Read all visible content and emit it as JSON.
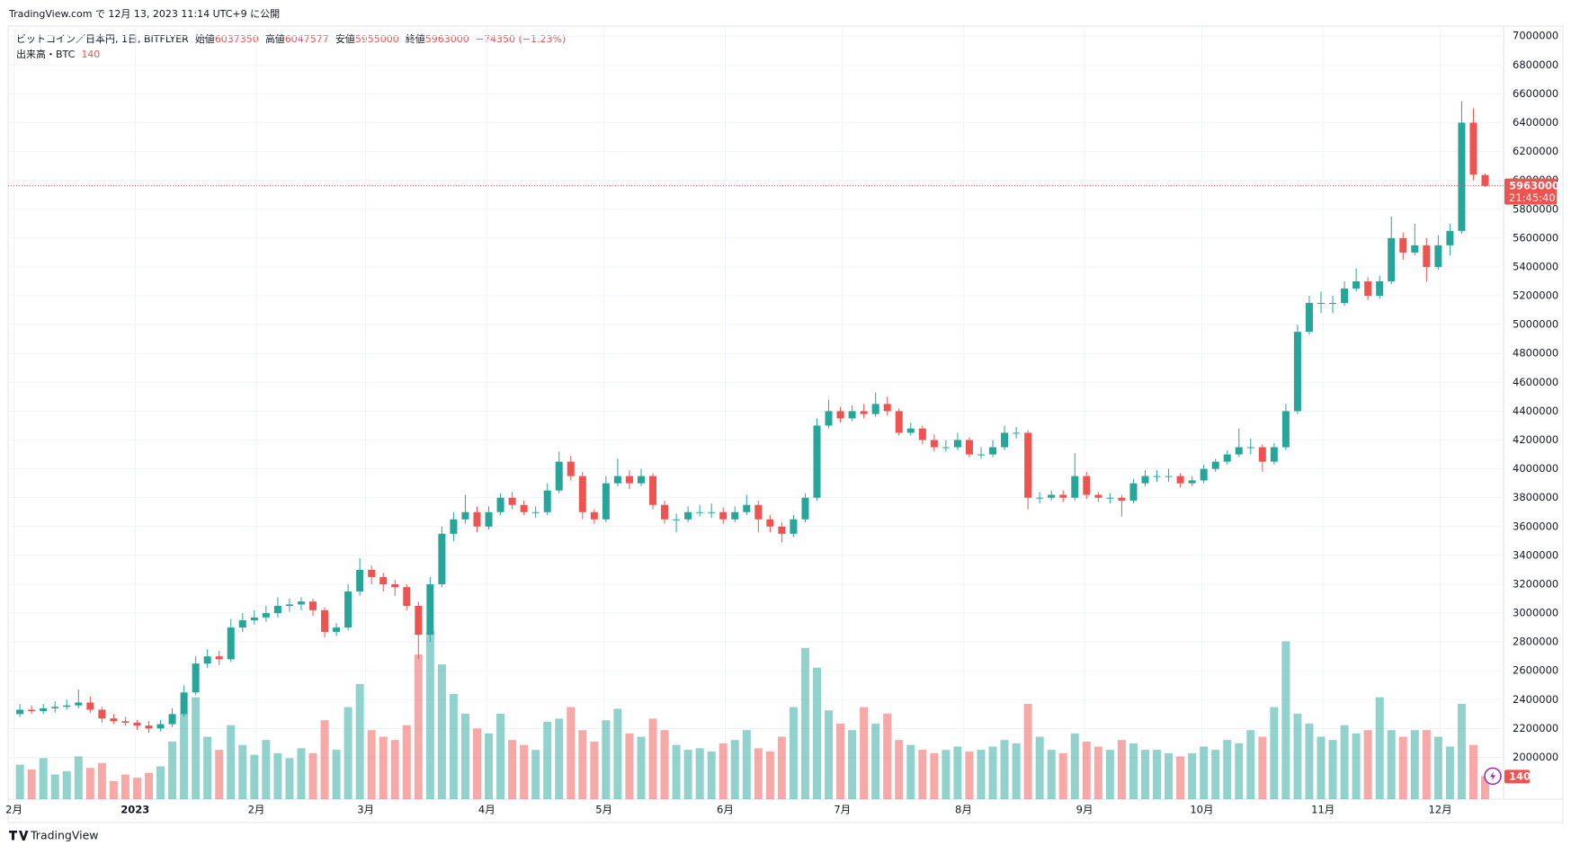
{
  "header": {
    "published": "TradingView.com で 12月 13, 2023 11:14 UTC+9 に公開"
  },
  "footer": {
    "brand": "TradingView"
  },
  "chart_data": {
    "type": "candlestick",
    "symbol": "ビットコイン／日本円, 1日, BITFLYER",
    "open_label": "始値",
    "high_label": "高値",
    "low_label": "安値",
    "close_label": "終値",
    "change_label": "−74350 (−1.23%)",
    "volume_title": "出来高・BTC",
    "countdown": "21:45:40",
    "up_color": "#26a69a",
    "down_color": "#ef5350",
    "ylim": [
      1710000,
      7070000
    ],
    "yticks": [
      2000000,
      2200000,
      2400000,
      2600000,
      2800000,
      3000000,
      3200000,
      3400000,
      3600000,
      3800000,
      4000000,
      4200000,
      4400000,
      4600000,
      4800000,
      5000000,
      5200000,
      5400000,
      5600000,
      5800000,
      6000000,
      6200000,
      6400000,
      6600000,
      6800000,
      7000000
    ],
    "xticks": [
      {
        "value": 0,
        "label": "2月"
      },
      {
        "value": 10.33,
        "label": "2023"
      },
      {
        "value": 20.67,
        "label": "2月"
      },
      {
        "value": 30,
        "label": "3月"
      },
      {
        "value": 40.33,
        "label": "4月"
      },
      {
        "value": 50.33,
        "label": "5月"
      },
      {
        "value": 60.67,
        "label": "6月"
      },
      {
        "value": 70.67,
        "label": "7月"
      },
      {
        "value": 81,
        "label": "8月"
      },
      {
        "value": 91.33,
        "label": "9月"
      },
      {
        "value": 101.33,
        "label": "10月"
      },
      {
        "value": 111.67,
        "label": "11月"
      },
      {
        "value": 121.67,
        "label": "12月"
      }
    ],
    "grid": true,
    "volume_lim": [
      0,
      1400
    ],
    "candles": [
      [
        2300000,
        2370000,
        2280000,
        2330000
      ],
      [
        2330000,
        2360000,
        2300000,
        2320000
      ],
      [
        2320000,
        2370000,
        2300000,
        2340000
      ],
      [
        2340000,
        2390000,
        2310000,
        2350000
      ],
      [
        2350000,
        2400000,
        2330000,
        2360000
      ],
      [
        2360000,
        2470000,
        2340000,
        2380000
      ],
      [
        2380000,
        2420000,
        2310000,
        2330000
      ],
      [
        2330000,
        2350000,
        2240000,
        2270000
      ],
      [
        2270000,
        2300000,
        2230000,
        2250000
      ],
      [
        2250000,
        2280000,
        2220000,
        2240000
      ],
      [
        2240000,
        2260000,
        2190000,
        2220000
      ],
      [
        2220000,
        2250000,
        2170000,
        2200000
      ],
      [
        2200000,
        2260000,
        2180000,
        2230000
      ],
      [
        2230000,
        2340000,
        2210000,
        2300000
      ],
      [
        2300000,
        2500000,
        2280000,
        2450000
      ],
      [
        2450000,
        2700000,
        2430000,
        2650000
      ],
      [
        2650000,
        2750000,
        2620000,
        2700000
      ],
      [
        2700000,
        2740000,
        2640000,
        2680000
      ],
      [
        2680000,
        2960000,
        2660000,
        2900000
      ],
      [
        2900000,
        3000000,
        2870000,
        2950000
      ],
      [
        2950000,
        3020000,
        2920000,
        2970000
      ],
      [
        2970000,
        3050000,
        2940000,
        3000000
      ],
      [
        3000000,
        3110000,
        2970000,
        3050000
      ],
      [
        3050000,
        3100000,
        3010000,
        3060000
      ],
      [
        3060000,
        3110000,
        3020000,
        3080000
      ],
      [
        3080000,
        3100000,
        2980000,
        3020000
      ],
      [
        3020000,
        3040000,
        2830000,
        2870000
      ],
      [
        2870000,
        2930000,
        2840000,
        2900000
      ],
      [
        2900000,
        3200000,
        2880000,
        3150000
      ],
      [
        3150000,
        3380000,
        3120000,
        3300000
      ],
      [
        3300000,
        3330000,
        3200000,
        3250000
      ],
      [
        3250000,
        3280000,
        3150000,
        3200000
      ],
      [
        3200000,
        3230000,
        3120000,
        3180000
      ],
      [
        3180000,
        3200000,
        3020000,
        3050000
      ],
      [
        3050000,
        3080000,
        2680000,
        2850000
      ],
      [
        2850000,
        3250000,
        2800000,
        3200000
      ],
      [
        3200000,
        3600000,
        3180000,
        3550000
      ],
      [
        3550000,
        3700000,
        3500000,
        3650000
      ],
      [
        3650000,
        3820000,
        3620000,
        3700000
      ],
      [
        3700000,
        3740000,
        3560000,
        3600000
      ],
      [
        3600000,
        3740000,
        3580000,
        3700000
      ],
      [
        3700000,
        3830000,
        3680000,
        3800000
      ],
      [
        3800000,
        3840000,
        3720000,
        3750000
      ],
      [
        3750000,
        3780000,
        3680000,
        3700000
      ],
      [
        3700000,
        3740000,
        3660000,
        3700000
      ],
      [
        3700000,
        3900000,
        3680000,
        3850000
      ],
      [
        3850000,
        4120000,
        3830000,
        4050000
      ],
      [
        4050000,
        4090000,
        3920000,
        3950000
      ],
      [
        3950000,
        3980000,
        3650000,
        3700000
      ],
      [
        3700000,
        3720000,
        3620000,
        3650000
      ],
      [
        3650000,
        3950000,
        3630000,
        3900000
      ],
      [
        3900000,
        4070000,
        3880000,
        3950000
      ],
      [
        3950000,
        3990000,
        3860000,
        3900000
      ],
      [
        3900000,
        4000000,
        3880000,
        3950000
      ],
      [
        3950000,
        3970000,
        3720000,
        3750000
      ],
      [
        3750000,
        3780000,
        3620000,
        3650000
      ],
      [
        3650000,
        3690000,
        3560000,
        3650000
      ],
      [
        3650000,
        3740000,
        3630000,
        3700000
      ],
      [
        3700000,
        3750000,
        3670000,
        3700000
      ],
      [
        3700000,
        3760000,
        3660000,
        3700000
      ],
      [
        3700000,
        3730000,
        3620000,
        3650000
      ],
      [
        3650000,
        3740000,
        3630000,
        3700000
      ],
      [
        3700000,
        3820000,
        3680000,
        3750000
      ],
      [
        3750000,
        3780000,
        3560000,
        3650000
      ],
      [
        3650000,
        3680000,
        3560000,
        3600000
      ],
      [
        3600000,
        3630000,
        3490000,
        3550000
      ],
      [
        3550000,
        3680000,
        3530000,
        3650000
      ],
      [
        3650000,
        3830000,
        3630000,
        3800000
      ],
      [
        3800000,
        4350000,
        3780000,
        4300000
      ],
      [
        4300000,
        4480000,
        4280000,
        4400000
      ],
      [
        4400000,
        4430000,
        4320000,
        4350000
      ],
      [
        4350000,
        4440000,
        4330000,
        4400000
      ],
      [
        4400000,
        4450000,
        4350000,
        4380000
      ],
      [
        4380000,
        4530000,
        4360000,
        4450000
      ],
      [
        4450000,
        4500000,
        4370000,
        4400000
      ],
      [
        4400000,
        4420000,
        4230000,
        4250000
      ],
      [
        4250000,
        4320000,
        4230000,
        4280000
      ],
      [
        4280000,
        4300000,
        4170000,
        4200000
      ],
      [
        4200000,
        4240000,
        4120000,
        4150000
      ],
      [
        4150000,
        4200000,
        4120000,
        4150000
      ],
      [
        4150000,
        4250000,
        4130000,
        4200000
      ],
      [
        4200000,
        4220000,
        4080000,
        4100000
      ],
      [
        4100000,
        4150000,
        4070000,
        4100000
      ],
      [
        4100000,
        4200000,
        4080000,
        4150000
      ],
      [
        4150000,
        4300000,
        4130000,
        4250000
      ],
      [
        4250000,
        4290000,
        4210000,
        4250000
      ],
      [
        4250000,
        4270000,
        3720000,
        3800000
      ],
      [
        3800000,
        3840000,
        3760000,
        3800000
      ],
      [
        3800000,
        3850000,
        3780000,
        3820000
      ],
      [
        3820000,
        3850000,
        3770000,
        3800000
      ],
      [
        3800000,
        4110000,
        3780000,
        3950000
      ],
      [
        3950000,
        3980000,
        3790000,
        3820000
      ],
      [
        3820000,
        3840000,
        3770000,
        3800000
      ],
      [
        3800000,
        3830000,
        3760000,
        3800000
      ],
      [
        3800000,
        3820000,
        3670000,
        3780000
      ],
      [
        3780000,
        3930000,
        3760000,
        3900000
      ],
      [
        3900000,
        3990000,
        3880000,
        3950000
      ],
      [
        3950000,
        3990000,
        3910000,
        3950000
      ],
      [
        3950000,
        4000000,
        3910000,
        3950000
      ],
      [
        3950000,
        3970000,
        3870000,
        3900000
      ],
      [
        3900000,
        3950000,
        3880000,
        3920000
      ],
      [
        3920000,
        4030000,
        3900000,
        4000000
      ],
      [
        4000000,
        4070000,
        3980000,
        4050000
      ],
      [
        4050000,
        4130000,
        4030000,
        4100000
      ],
      [
        4100000,
        4280000,
        4080000,
        4150000
      ],
      [
        4150000,
        4210000,
        4100000,
        4150000
      ],
      [
        4150000,
        4170000,
        3980000,
        4050000
      ],
      [
        4050000,
        4180000,
        4030000,
        4150000
      ],
      [
        4150000,
        4450000,
        4130000,
        4400000
      ],
      [
        4400000,
        5000000,
        4380000,
        4950000
      ],
      [
        4950000,
        5200000,
        4930000,
        5150000
      ],
      [
        5150000,
        5230000,
        5080000,
        5150000
      ],
      [
        5150000,
        5200000,
        5080000,
        5150000
      ],
      [
        5150000,
        5300000,
        5130000,
        5250000
      ],
      [
        5250000,
        5390000,
        5230000,
        5300000
      ],
      [
        5300000,
        5330000,
        5170000,
        5200000
      ],
      [
        5200000,
        5340000,
        5180000,
        5300000
      ],
      [
        5300000,
        5750000,
        5280000,
        5600000
      ],
      [
        5600000,
        5640000,
        5450000,
        5500000
      ],
      [
        5500000,
        5700000,
        5480000,
        5550000
      ],
      [
        5550000,
        5600000,
        5300000,
        5400000
      ],
      [
        5400000,
        5620000,
        5380000,
        5550000
      ],
      [
        5550000,
        5700000,
        5480000,
        5650000
      ],
      [
        5650000,
        6550000,
        5630000,
        6400000
      ],
      [
        6400000,
        6500000,
        6000000,
        6040000
      ],
      [
        6037350,
        6047577,
        5955000,
        5963000
      ]
    ],
    "volumes": [
      210,
      180,
      250,
      150,
      170,
      260,
      190,
      220,
      110,
      150,
      130,
      160,
      200,
      350,
      520,
      620,
      380,
      300,
      450,
      330,
      270,
      360,
      280,
      250,
      310,
      280,
      480,
      300,
      560,
      700,
      420,
      380,
      360,
      450,
      880,
      1020,
      820,
      640,
      520,
      430,
      400,
      520,
      360,
      330,
      300,
      470,
      490,
      560,
      420,
      350,
      480,
      550,
      400,
      380,
      490,
      420,
      330,
      300,
      310,
      290,
      340,
      360,
      420,
      310,
      290,
      380,
      560,
      920,
      800,
      540,
      460,
      420,
      560,
      460,
      520,
      360,
      330,
      300,
      280,
      300,
      320,
      290,
      300,
      320,
      360,
      340,
      580,
      380,
      300,
      280,
      400,
      350,
      320,
      300,
      360,
      340,
      300,
      300,
      280,
      260,
      280,
      320,
      300,
      360,
      340,
      420,
      380,
      560,
      960,
      520,
      460,
      380,
      360,
      450,
      400,
      420,
      620,
      420,
      380,
      420,
      420,
      380,
      320,
      580,
      330,
      140
    ]
  }
}
